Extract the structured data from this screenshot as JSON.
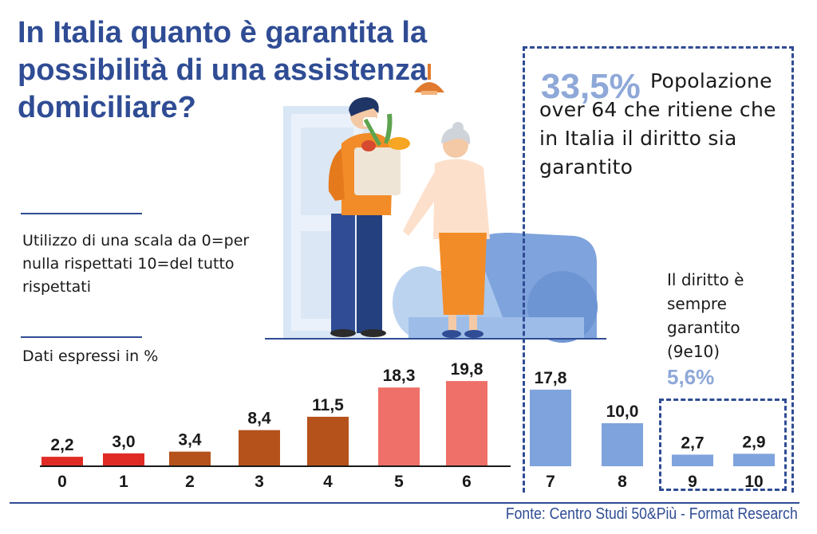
{
  "title": "In Italia quanto è garantita la possibilità di una assistenza domiciliare?",
  "scale_note": "Utilizzo di una scala da 0=per nulla rispettati 10=del tutto rispettati",
  "data_note": "Dati espressi in %",
  "highlight": {
    "value": "33,5%",
    "description": "Popolazione over 64 che ritiene che in Italia il diritto sia garantito"
  },
  "always_guaranteed": {
    "label": "Il diritto è sempre garantito (9e10)",
    "value": "5,6%"
  },
  "source": "Fonte: Centro Studi 50&Più - Format Research",
  "colors": {
    "title": "#2f4c94",
    "score_0_1": "#e02b25",
    "score_2_4": "#b5521c",
    "score_5_6": "#ee7068",
    "score_7_10": "#7fa3dc",
    "highlight": "#8ea8d8"
  },
  "chart_data": {
    "type": "bar",
    "title": "",
    "xlabel": "",
    "ylabel": "",
    "ylim": [
      0,
      20
    ],
    "categories": [
      "0",
      "1",
      "2",
      "3",
      "4",
      "5",
      "6",
      "7",
      "8",
      "9",
      "10"
    ],
    "values": [
      2.2,
      3.0,
      3.4,
      8.4,
      11.5,
      18.3,
      19.8,
      17.8,
      10.0,
      2.7,
      2.9
    ],
    "value_labels": [
      "2,2",
      "3,0",
      "3,4",
      "8,4",
      "11,5",
      "18,3",
      "19,8",
      "17,8",
      "10,0",
      "2,7",
      "2,9"
    ],
    "bar_colors": [
      "#e02b25",
      "#e02b25",
      "#b5521c",
      "#b5521c",
      "#b5521c",
      "#ee7068",
      "#ee7068",
      "#7fa3dc",
      "#7fa3dc",
      "#7fa3dc",
      "#7fa3dc"
    ]
  }
}
